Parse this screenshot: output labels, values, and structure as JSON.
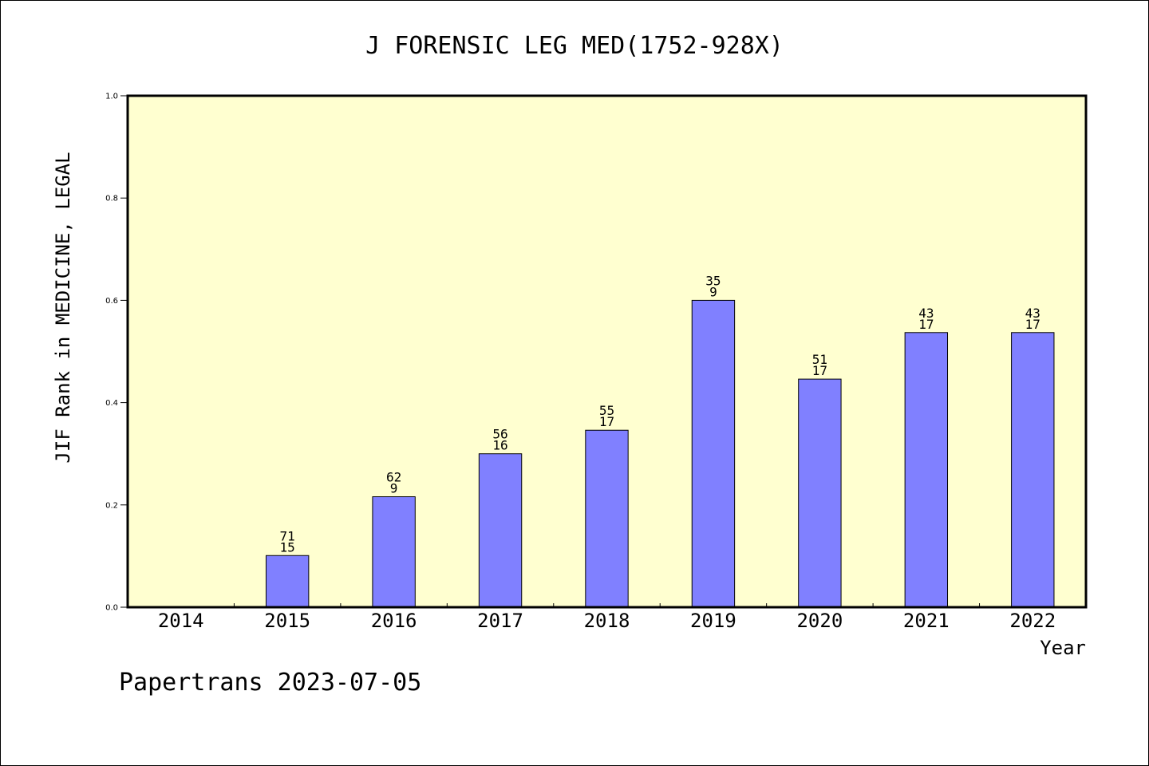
{
  "chart_data": {
    "type": "bar",
    "title": "J FORENSIC LEG MED(1752-928X)",
    "xlabel": "Year",
    "ylabel": "JIF Rank in MEDICINE, LEGAL",
    "ylim": [
      0,
      1.0
    ],
    "yticks": [
      "0.0",
      "0.2",
      "0.4",
      "0.6",
      "0.8",
      "1.0"
    ],
    "categories": [
      "2014",
      "2015",
      "2016",
      "2017",
      "2018",
      "2019",
      "2020",
      "2021",
      "2022"
    ],
    "values": [
      null,
      0.101,
      0.216,
      0.3,
      0.346,
      0.6,
      0.446,
      0.537,
      0.537
    ],
    "labels_top": [
      "",
      "71",
      "62",
      "56",
      "55",
      "35",
      "51",
      "43",
      "43"
    ],
    "labels_bottom": [
      "",
      "15",
      "9",
      "16",
      "17",
      "9",
      "17",
      "17",
      "17"
    ],
    "colors": {
      "bar": "#8080ff",
      "plot_background": "#ffffd0"
    },
    "grid": false
  },
  "footer": "Papertrans 2023-07-05"
}
